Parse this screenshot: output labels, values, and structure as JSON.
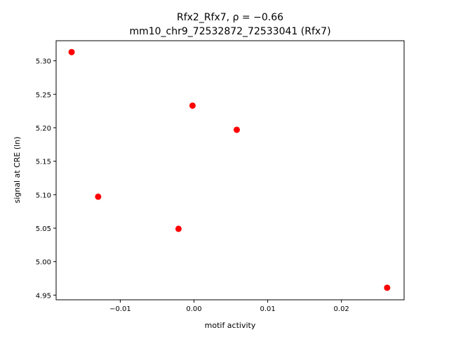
{
  "chart_data": {
    "type": "scatter",
    "title_line1": "Rfx2_Rfx7, ρ = −0.66",
    "title_line2": "mm10_chr9_72532872_72533041 (Rfx7)",
    "xlabel": "motif activity",
    "ylabel": "signal at CRE (ln)",
    "xlim": [
      -0.0187,
      0.0285
    ],
    "ylim": [
      4.943,
      5.33
    ],
    "xticks": [
      {
        "value": -0.01,
        "label": "−0.01"
      },
      {
        "value": 0.0,
        "label": "0.00"
      },
      {
        "value": 0.01,
        "label": "0.01"
      },
      {
        "value": 0.02,
        "label": "0.02"
      }
    ],
    "yticks": [
      {
        "value": 4.95,
        "label": "4.95"
      },
      {
        "value": 5.0,
        "label": "5.00"
      },
      {
        "value": 5.05,
        "label": "5.05"
      },
      {
        "value": 5.1,
        "label": "5.10"
      },
      {
        "value": 5.15,
        "label": "5.15"
      },
      {
        "value": 5.2,
        "label": "5.20"
      },
      {
        "value": 5.25,
        "label": "5.25"
      },
      {
        "value": 5.3,
        "label": "5.30"
      }
    ],
    "points": [
      {
        "x": -0.0166,
        "y": 5.313
      },
      {
        "x": -0.0002,
        "y": 5.233
      },
      {
        "x": 0.0058,
        "y": 5.197
      },
      {
        "x": -0.013,
        "y": 5.097
      },
      {
        "x": -0.0021,
        "y": 5.049
      },
      {
        "x": 0.0262,
        "y": 4.961
      }
    ],
    "marker_color": "#ff0000",
    "grid": false
  }
}
